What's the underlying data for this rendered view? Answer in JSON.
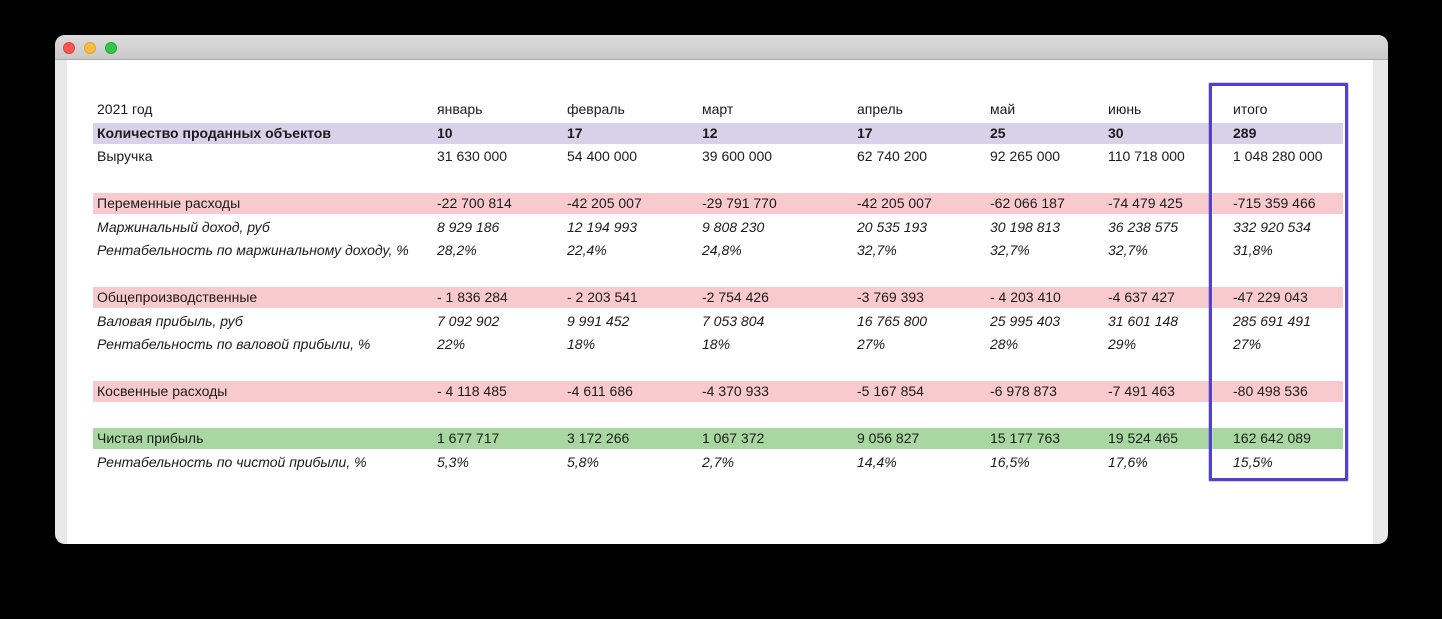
{
  "window": {
    "title": "",
    "traffic_lights": {
      "close": "close",
      "minimize": "minimize",
      "zoom": "zoom"
    }
  },
  "colors": {
    "row_purple": "#d8d1e9",
    "row_pink": "#f8cacd",
    "row_green": "#a8d7a1",
    "selection_border": "#5141d0",
    "text": "#1b1b1b"
  },
  "table": {
    "header": {
      "year": "2021 год",
      "columns": [
        "январь",
        "февраль",
        "март",
        "апрель",
        "май",
        "июнь",
        "итого"
      ]
    },
    "rows": [
      {
        "label": "Количество проданных объектов",
        "style": "qty",
        "values": [
          "10",
          "17",
          "12",
          "17",
          "25",
          "30",
          "289"
        ]
      },
      {
        "label": "Выручка",
        "style": "plain",
        "values": [
          "31 630 000",
          "54 400 000",
          "39 600 000",
          "62 740 200",
          "92 265 000",
          "110 718 000",
          "1 048 280 000"
        ]
      },
      {
        "label": "",
        "style": "spacer",
        "values": [
          "",
          "",
          "",
          "",
          "",
          "",
          ""
        ]
      },
      {
        "label": "Переменные расходы",
        "style": "pink",
        "values": [
          "-22 700 814",
          "-42 205 007",
          "-29 791 770",
          "-42 205 007",
          "-62 066 187",
          "-74 479 425",
          "-715 359 466"
        ]
      },
      {
        "label": "Маржинальный доход, руб",
        "style": "italic",
        "values": [
          "8 929 186",
          "12 194 993",
          "9 808 230",
          "20 535 193",
          "30 198 813",
          "36 238 575",
          "332 920 534"
        ]
      },
      {
        "label": "Рентабельность по маржинальному доходу, %",
        "style": "italic",
        "values": [
          "28,2%",
          "22,4%",
          "24,8%",
          "32,7%",
          "32,7%",
          "32,7%",
          "31,8%"
        ]
      },
      {
        "label": "",
        "style": "spacer",
        "values": [
          "",
          "",
          "",
          "",
          "",
          "",
          ""
        ]
      },
      {
        "label": "Общепроизводственные",
        "style": "pink",
        "values": [
          "- 1 836 284",
          "- 2 203 541",
          "-2 754 426",
          "-3 769 393",
          "- 4 203 410",
          "-4 637 427",
          "-47 229 043"
        ]
      },
      {
        "label": "Валовая прибыль, руб",
        "style": "italic",
        "values": [
          "7 092 902",
          "9 991 452",
          "7 053 804",
          "16 765 800",
          "25 995 403",
          "31 601 148",
          "285 691 491"
        ]
      },
      {
        "label": "Рентабельность по валовой прибыли, %",
        "style": "italic",
        "values": [
          "22%",
          "18%",
          "18%",
          "27%",
          "28%",
          "29%",
          "27%"
        ]
      },
      {
        "label": "",
        "style": "spacer",
        "values": [
          "",
          "",
          "",
          "",
          "",
          "",
          ""
        ]
      },
      {
        "label": "Косвенные расходы",
        "style": "pink",
        "values": [
          "- 4 118 485",
          "-4 611 686",
          "-4 370 933",
          "-5 167 854",
          "-6 978 873",
          "-7 491 463",
          "-80 498 536"
        ]
      },
      {
        "label": "",
        "style": "spacer",
        "values": [
          "",
          "",
          "",
          "",
          "",
          "",
          ""
        ]
      },
      {
        "label": "Чистая прибыль",
        "style": "green",
        "values": [
          "1 677 717",
          "3 172 266",
          "1 067 372",
          "9 056 827",
          "15 177 763",
          "19 524 465",
          "162 642 089"
        ]
      },
      {
        "label": "Рентабельность по чистой прибыли, %",
        "style": "italic",
        "values": [
          "5,3%",
          "5,8%",
          "2,7%",
          "14,4%",
          "16,5%",
          "17,6%",
          "15,5%"
        ]
      }
    ]
  }
}
